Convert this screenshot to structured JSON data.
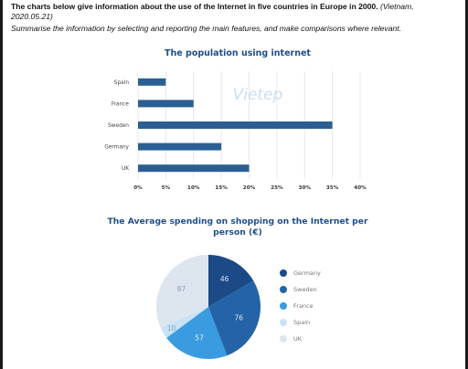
{
  "header": {
    "task_bold": "The charts below give information about the use of the Internet in five countries in Europe in 2000.",
    "task_italic": "(Vietnam, 2020.05.21)",
    "instruction": "Summarise the information by selecting and reporting the main features, and make comparisons where relevant."
  },
  "watermark": "Vietep",
  "chart_data": [
    {
      "type": "bar",
      "orientation": "horizontal",
      "title": "The population using internet",
      "categories": [
        "Spain",
        "France",
        "Sweden",
        "Germany",
        "UK"
      ],
      "values": [
        5,
        10,
        35,
        15,
        20
      ],
      "x_ticks": [
        "0%",
        "5%",
        "10%",
        "15%",
        "20%",
        "25%",
        "30%",
        "35%",
        "40%"
      ],
      "xlim": [
        0,
        40
      ],
      "unit": "%",
      "grid": true,
      "bar_color": "#2b5f94"
    },
    {
      "type": "pie",
      "title": "The Average spending on shopping on the Internet per person (€)",
      "labels": [
        "Germany",
        "Sweden",
        "France",
        "Spain",
        "UK"
      ],
      "values": [
        46,
        76,
        57,
        10,
        87
      ],
      "colors": [
        "#1b4a86",
        "#2463a8",
        "#3a9be0",
        "#c9e2f4",
        "#dde5ee"
      ],
      "legend_position": "right"
    }
  ]
}
